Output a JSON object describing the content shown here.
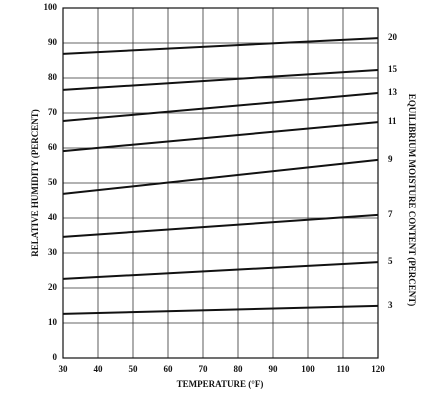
{
  "chart_data": {
    "type": "line",
    "x_label": "TEMPERATURE (°F)",
    "y_label": "RELATIVE HUMIDITY (PERCENT)",
    "right_label": "EQUILIBRIUM MOISTURE CONTENT (PERCENT)",
    "x": [
      30,
      120
    ],
    "series": [
      {
        "name": "20",
        "color": "#111111",
        "values": [
          86.9,
          91.4
        ]
      },
      {
        "name": "15",
        "color": "#111111",
        "values": [
          76.6,
          82.3
        ]
      },
      {
        "name": "13",
        "color": "#111111",
        "values": [
          67.7,
          75.7
        ]
      },
      {
        "name": "11",
        "color": "#111111",
        "values": [
          59.1,
          67.4
        ]
      },
      {
        "name": "9",
        "color": "#111111",
        "values": [
          46.9,
          56.6
        ]
      },
      {
        "name": "7",
        "color": "#111111",
        "values": [
          34.6,
          40.9
        ]
      },
      {
        "name": "5",
        "color": "#111111",
        "values": [
          22.6,
          27.4
        ]
      },
      {
        "name": "3",
        "color": "#111111",
        "values": [
          12.6,
          14.9
        ]
      }
    ],
    "xlim": [
      30,
      120
    ],
    "xticks": [
      30,
      40,
      50,
      60,
      70,
      80,
      90,
      100,
      110,
      120
    ],
    "ylim": [
      0,
      100
    ],
    "yticks": [
      0,
      10,
      20,
      30,
      40,
      50,
      60,
      70,
      80,
      90,
      100
    ],
    "grid": true
  }
}
